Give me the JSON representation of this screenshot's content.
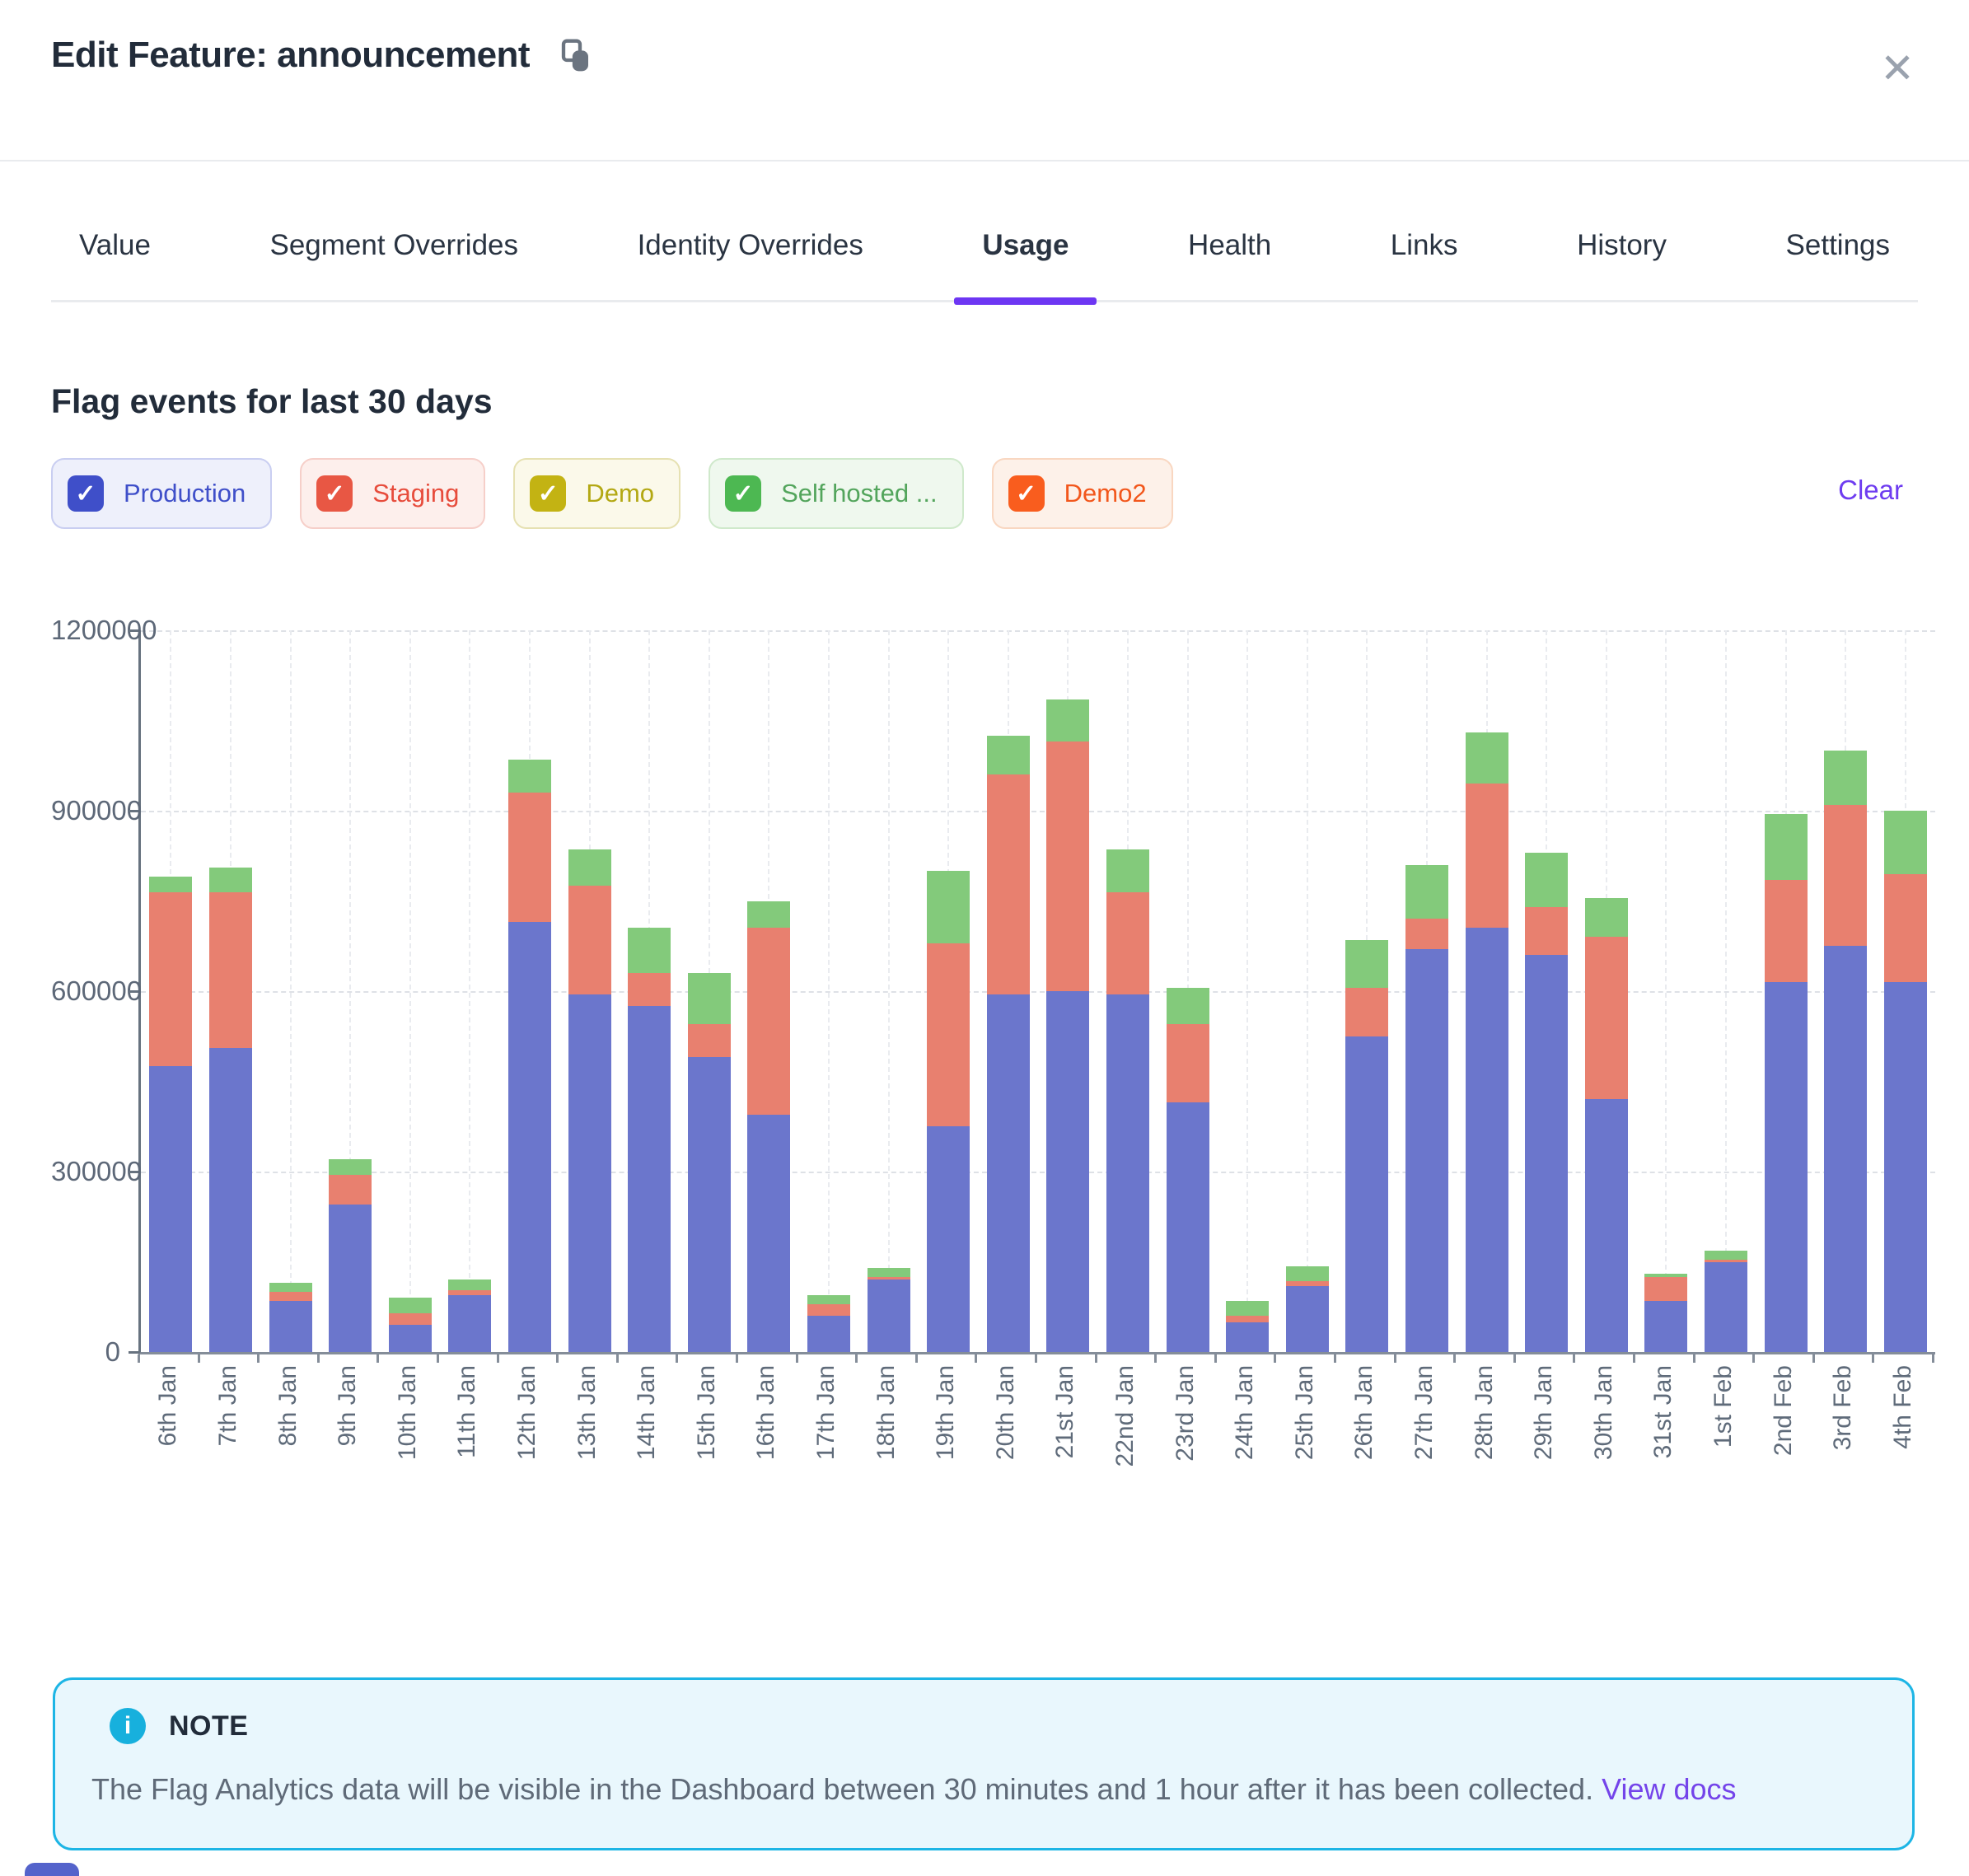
{
  "modal": {
    "title": "Edit Feature: announcement",
    "close_glyph": "✕"
  },
  "tabs": {
    "items": [
      {
        "label": "Value",
        "active": false
      },
      {
        "label": "Segment Overrides",
        "active": false
      },
      {
        "label": "Identity Overrides",
        "active": false
      },
      {
        "label": "Usage",
        "active": true
      },
      {
        "label": "Health",
        "active": false
      },
      {
        "label": "Links",
        "active": false
      },
      {
        "label": "History",
        "active": false
      },
      {
        "label": "Settings",
        "active": false
      }
    ],
    "active_color": "#6d36f3"
  },
  "usage": {
    "heading": "Flag events for last 30 days",
    "clear_label": "Clear",
    "clear_color": "#6e3cf0",
    "filters": [
      {
        "label": "Production",
        "checked": true,
        "checkbox": "#3f4fc9",
        "text": "#3f4fc9",
        "bg": "#eef0fb",
        "border": "#c9cef1"
      },
      {
        "label": "Staging",
        "checked": true,
        "checkbox": "#e85744",
        "text": "#e74c3c",
        "bg": "#fdefec",
        "border": "#f6cfc9"
      },
      {
        "label": "Demo",
        "checked": true,
        "checkbox": "#c3b313",
        "text": "#b3a813",
        "bg": "#fbf9ea",
        "border": "#e6e1b2"
      },
      {
        "label": "Self hosted ...",
        "checked": true,
        "checkbox": "#4db852",
        "text": "#53a55c",
        "bg": "#eff8ee",
        "border": "#cfe9cb"
      },
      {
        "label": "Demo2",
        "checked": true,
        "checkbox": "#f95d1e",
        "text": "#f2571c",
        "bg": "#fdf1e9",
        "border": "#f9d7c1"
      }
    ]
  },
  "chart_data": {
    "type": "bar",
    "stacked": true,
    "title": "Flag events for last 30 days",
    "xlabel": "",
    "ylabel": "",
    "ylim": [
      0,
      1200000
    ],
    "ytick_step": 300000,
    "grid": true,
    "legend_position": "top-as-filter-chips",
    "legend": [
      "Production",
      "Staging",
      "Demo",
      "Self hosted ...",
      "Demo2"
    ],
    "categories": [
      "6th Jan",
      "7th Jan",
      "8th Jan",
      "9th Jan",
      "10th Jan",
      "11th Jan",
      "12th Jan",
      "13th Jan",
      "14th Jan",
      "15th Jan",
      "16th Jan",
      "17th Jan",
      "18th Jan",
      "19th Jan",
      "20th Jan",
      "21st Jan",
      "22nd Jan",
      "23rd Jan",
      "24th Jan",
      "25th Jan",
      "26th Jan",
      "27th Jan",
      "28th Jan",
      "29th Jan",
      "30th Jan",
      "31st Jan",
      "1st Feb",
      "2nd Feb",
      "3rd Feb",
      "4th Feb"
    ],
    "series": [
      {
        "name": "Production",
        "color": "#6b76cc",
        "values": [
          475000,
          505000,
          85000,
          245000,
          45000,
          95000,
          715000,
          595000,
          575000,
          490000,
          395000,
          60000,
          120000,
          375000,
          595000,
          600000,
          595000,
          415000,
          50000,
          110000,
          525000,
          670000,
          705000,
          660000,
          420000,
          85000,
          150000,
          615000,
          675000,
          615000
        ]
      },
      {
        "name": "Staging",
        "color": "#e8806f",
        "values": [
          290000,
          260000,
          15000,
          50000,
          20000,
          8000,
          215000,
          180000,
          55000,
          55000,
          310000,
          20000,
          5000,
          305000,
          365000,
          415000,
          170000,
          130000,
          10000,
          8000,
          80000,
          50000,
          240000,
          80000,
          270000,
          40000,
          3000,
          170000,
          235000,
          180000
        ]
      },
      {
        "name": "Self hosted ...",
        "color": "#83ca7b",
        "values": [
          25000,
          40000,
          15000,
          25000,
          25000,
          17000,
          55000,
          60000,
          75000,
          85000,
          45000,
          15000,
          15000,
          120000,
          65000,
          70000,
          70000,
          60000,
          25000,
          25000,
          80000,
          90000,
          85000,
          90000,
          65000,
          5000,
          15000,
          110000,
          90000,
          105000
        ]
      }
    ]
  },
  "note": {
    "label": "NOTE",
    "text": "The Flag Analytics data will be visible in the Dashboard between 30 minutes and 1 hour after it has been collected.",
    "link": "View docs"
  }
}
